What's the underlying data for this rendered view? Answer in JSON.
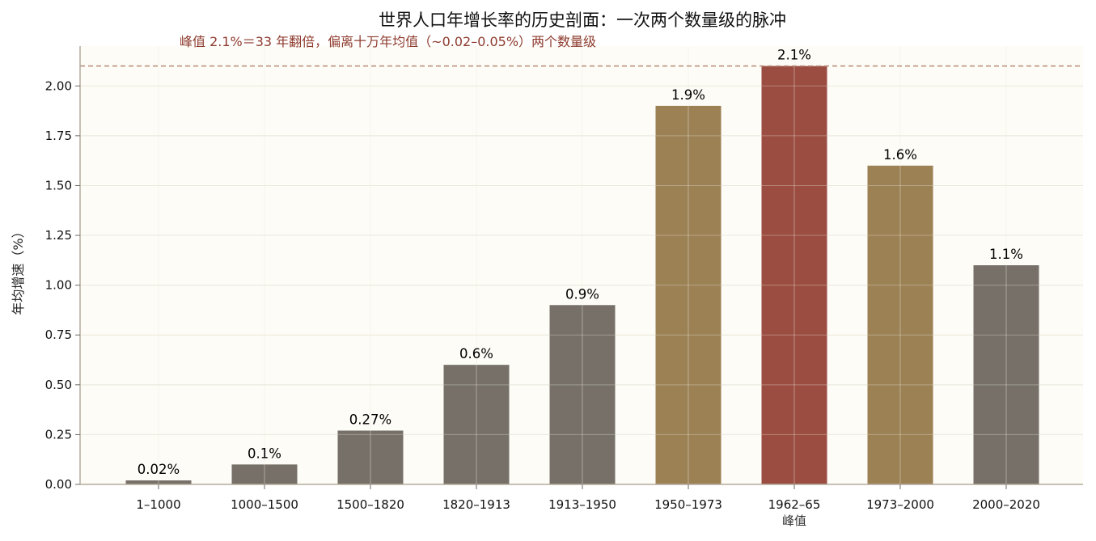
{
  "chart_data": {
    "type": "bar",
    "title": "世界人口年增长率的历史剖面：一次两个数量级的脉冲",
    "annotation": "峰值 2.1%＝33 年翻倍，偏离十万年均值（~0.02–0.05%）两个数量级",
    "xlabel": "",
    "ylabel": "年均增速（%）",
    "ylim": [
      0,
      2.2
    ],
    "yticks": [
      "0.00",
      "0.25",
      "0.50",
      "0.75",
      "1.00",
      "1.25",
      "1.50",
      "1.75",
      "2.00"
    ],
    "ytick_values": [
      0,
      0.25,
      0.5,
      0.75,
      1.0,
      1.25,
      1.5,
      1.75,
      2.0
    ],
    "categories": [
      "1–1000",
      "1000–1500",
      "1500–1820",
      "1820–1913",
      "1913–1950",
      "1950–1973",
      "1962–65",
      "1973–2000",
      "2000–2020"
    ],
    "values": [
      0.02,
      0.1,
      0.27,
      0.6,
      0.9,
      1.9,
      2.1,
      1.6,
      1.1
    ],
    "value_labels": [
      "0.02%",
      "0.1%",
      "0.27%",
      "0.6%",
      "0.9%",
      "1.9%",
      "2.1%",
      "1.6%",
      "1.1%"
    ],
    "bar_colors": [
      "#767069",
      "#767069",
      "#767069",
      "#767069",
      "#767069",
      "#9c8155",
      "#9b4d42",
      "#9c8155",
      "#767069"
    ],
    "peak_sublabel": "峰值",
    "peak_line_value": 2.1,
    "grid": true,
    "background_color": "#fdfcf7",
    "peak_line_color": "#b88a78"
  }
}
